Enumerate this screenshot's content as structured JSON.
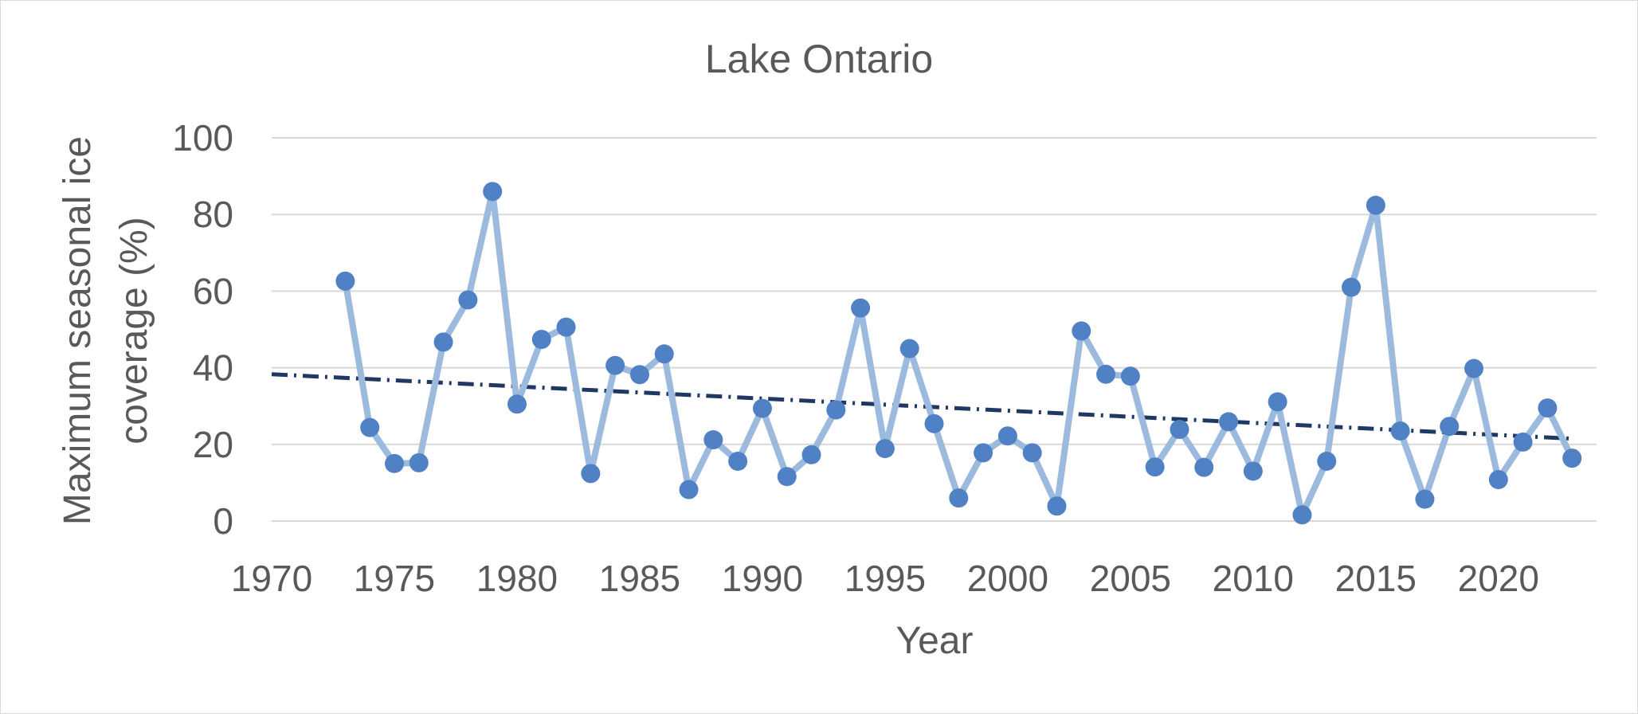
{
  "chart_data": {
    "type": "line",
    "title": "Lake Ontario",
    "xlabel": "Year",
    "ylabel_lines": [
      "Maximum seasonal ice",
      "coverage (%)"
    ],
    "xlim": [
      1970,
      2024
    ],
    "ylim": [
      0,
      100
    ],
    "x_ticks": [
      1970,
      1975,
      1980,
      1985,
      1990,
      1995,
      2000,
      2005,
      2010,
      2015,
      2020
    ],
    "y_ticks": [
      0,
      20,
      40,
      60,
      80,
      100
    ],
    "grid": true,
    "legend": "none",
    "colors": {
      "line": "#9cb9de",
      "marker": "#4f81c4",
      "trend": "#1f3864",
      "grid": "#d9d9d9",
      "text": "#595959"
    },
    "series": [
      {
        "x": [
          1973,
          1974,
          1975,
          1976,
          1977,
          1978,
          1979,
          1980,
          1981,
          1982,
          1983,
          1984,
          1985,
          1986,
          1987,
          1988,
          1989,
          1990,
          1991,
          1992,
          1993,
          1994,
          1995,
          1996,
          1997,
          1998,
          1999,
          2000,
          2001,
          2002,
          2003,
          2004,
          2005,
          2006,
          2007,
          2008,
          2009,
          2010,
          2011,
          2012,
          2013,
          2014,
          2015,
          2016,
          2017,
          2018,
          2019,
          2020,
          2021,
          2022,
          2023
        ],
        "y": [
          62.6,
          24.4,
          15.0,
          15.2,
          46.7,
          57.7,
          86.0,
          30.5,
          47.4,
          50.6,
          12.4,
          40.6,
          38.2,
          43.6,
          8.2,
          21.2,
          15.6,
          29.4,
          11.6,
          17.3,
          29.0,
          55.6,
          18.9,
          45.0,
          25.4,
          6.0,
          17.8,
          22.2,
          17.8,
          3.9,
          49.6,
          38.3,
          37.8,
          14.1,
          23.9,
          14.0,
          25.9,
          13.0,
          31.1,
          1.6,
          15.6,
          61.0,
          82.4,
          23.5,
          5.7,
          24.7,
          39.8,
          10.8,
          20.6,
          29.5,
          16.4
        ]
      }
    ],
    "trendline": {
      "type": "linear",
      "points": [
        [
          1970,
          38.3
        ],
        [
          2023,
          21.5
        ]
      ]
    }
  }
}
